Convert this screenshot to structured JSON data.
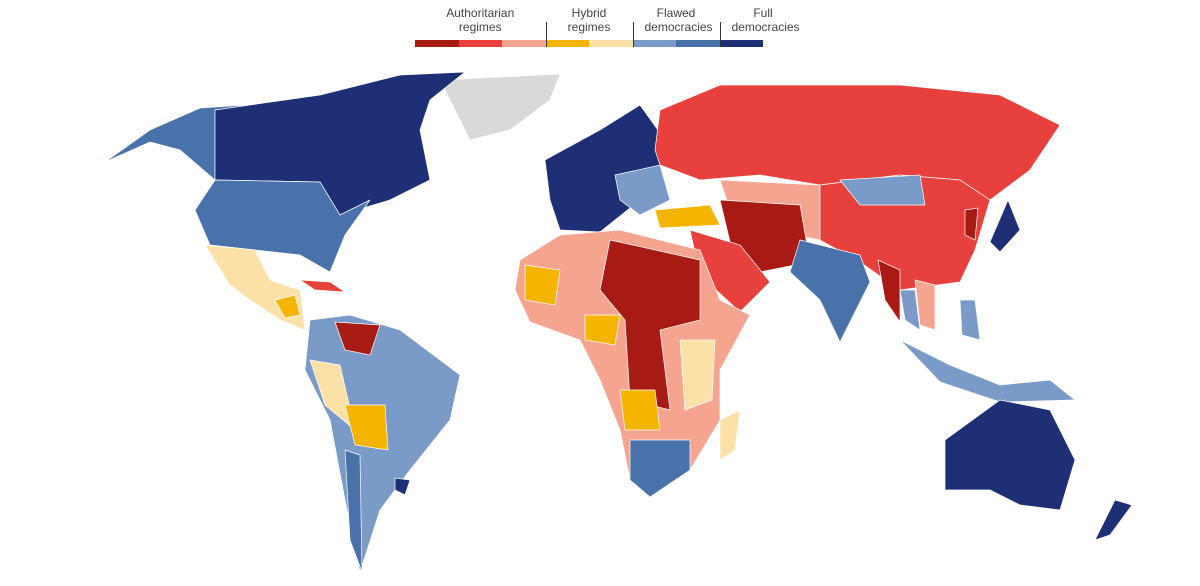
{
  "legend": {
    "groups": [
      {
        "label": "Authoritarian regimes",
        "colors": [
          "#a81a14",
          "#e8403c",
          "#f4a48f"
        ]
      },
      {
        "label": "Hybrid regimes",
        "colors": [
          "#f5b400",
          "#fbe0a8"
        ]
      },
      {
        "label": "Flawed democracies",
        "colors": [
          "#7a9ac8",
          "#4a72aa"
        ]
      },
      {
        "label": "Full democracies",
        "colors": [
          "#1f2f75"
        ]
      }
    ]
  }
}
